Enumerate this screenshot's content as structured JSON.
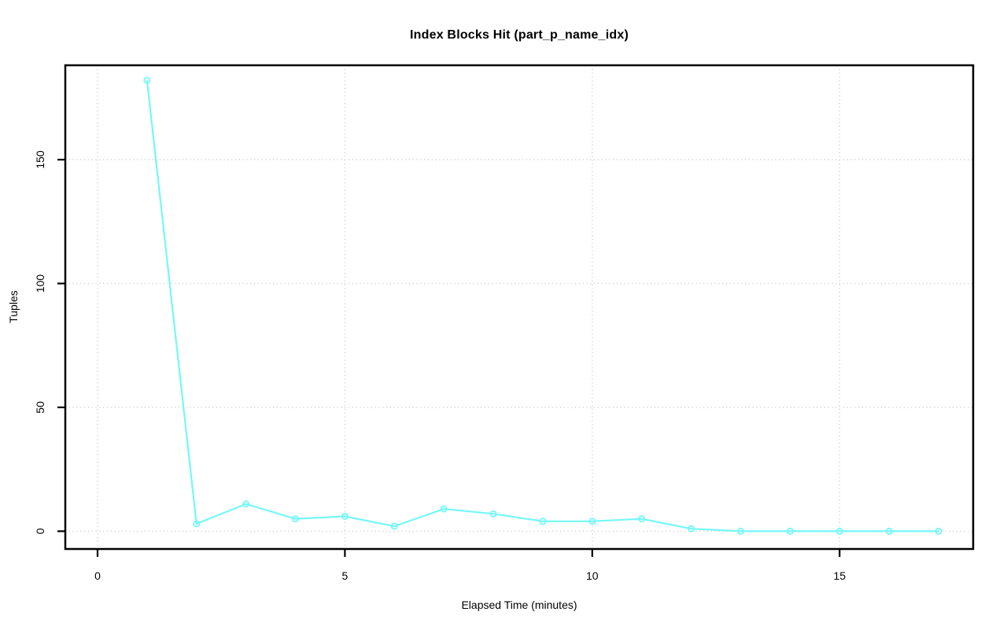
{
  "figure": {
    "background": "#ffffff"
  },
  "chart_data": {
    "type": "line",
    "title": "Index Blocks Hit (part_p_name_idx)",
    "xlabel": "Elapsed Time (minutes)",
    "ylabel": "Tuples",
    "x": [
      1,
      2,
      3,
      4,
      5,
      6,
      7,
      8,
      9,
      10,
      11,
      12,
      13,
      14,
      15,
      16,
      17
    ],
    "values": [
      182,
      3,
      11,
      5,
      6,
      2,
      9,
      7,
      4,
      4,
      5,
      1,
      0,
      0,
      0,
      0,
      0
    ],
    "x_ticks": [
      0,
      5,
      10,
      15
    ],
    "y_ticks": [
      0,
      50,
      100,
      150
    ],
    "xlim": [
      -0.652,
      17.7
    ],
    "ylim": [
      -7.18,
      188.1
    ],
    "grid": true,
    "grid_style": "dotted",
    "legend_position": "none",
    "marker": "open-circle",
    "colors": {
      "series": "#76f7f7",
      "grid": "#cfcfcf",
      "axis": "#000000",
      "text": "#000000"
    }
  }
}
